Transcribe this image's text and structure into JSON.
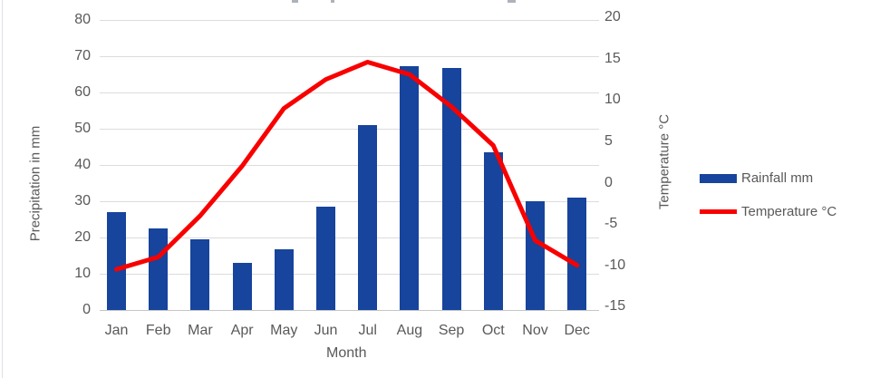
{
  "chart_data": {
    "type": "combo-bar-line",
    "categories": [
      "Jan",
      "Feb",
      "Mar",
      "Apr",
      "May",
      "Jun",
      "Jul",
      "Aug",
      "Sep",
      "Oct",
      "Nov",
      "Dec"
    ],
    "series": [
      {
        "name": "Rainfall mm",
        "type": "bar",
        "axis": "left",
        "color": "#17449C",
        "values": [
          27,
          22.5,
          19.5,
          13,
          16.8,
          28.5,
          51,
          67.2,
          66.8,
          43.4,
          30,
          31
        ]
      },
      {
        "name": "Temperature °C",
        "type": "line",
        "axis": "right",
        "color": "#F80000",
        "values": [
          -10.5,
          -9,
          -4,
          2,
          9,
          12.5,
          14.6,
          13.1,
          9.2,
          4.5,
          -7,
          -10
        ]
      }
    ],
    "left_axis": {
      "label": "Precipitation in mm",
      "min": 0,
      "max": 80,
      "tick_step": 10,
      "ticks": [
        0,
        10,
        20,
        30,
        40,
        50,
        60,
        70,
        80
      ]
    },
    "right_axis": {
      "label": "Temperature  °C",
      "min": -15,
      "max": 20,
      "tick_step": 5,
      "ticks": [
        -15,
        -10,
        -5,
        0,
        5,
        10,
        15,
        20
      ]
    },
    "x_axis": {
      "label": "Month"
    },
    "legend": {
      "position": "right",
      "entries": [
        "Rainfall mm",
        "Temperature °C"
      ]
    },
    "grid": true
  },
  "colors": {
    "bar": "#17449C",
    "line": "#F80000",
    "axis_text": "#595959",
    "gridline": "#dcdcdc",
    "background": "#ffffff"
  }
}
